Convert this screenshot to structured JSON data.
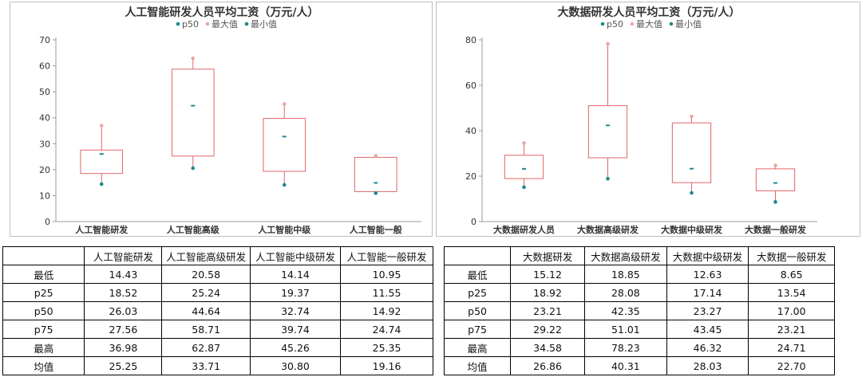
{
  "chart_data": [
    {
      "type": "box",
      "title": "人工智能研发人员平均工资（万元/人）",
      "legend": [
        {
          "name": "p50",
          "color": "#1a8a8a"
        },
        {
          "name": "最大值",
          "color": "#e7a8a8"
        },
        {
          "name": "最小值",
          "color": "#1a8a8a"
        }
      ],
      "categories": [
        "人工智能研发",
        "人工智能高级",
        "人工智能中级",
        "人工智能一般"
      ],
      "ylim": [
        0,
        70
      ],
      "yticks": [
        0,
        10,
        20,
        30,
        40,
        50,
        60,
        70
      ],
      "min": [
        14.43,
        20.58,
        14.14,
        10.95
      ],
      "p25": [
        18.52,
        25.24,
        19.37,
        11.55
      ],
      "p50": [
        26.03,
        44.64,
        32.74,
        14.92
      ],
      "p75": [
        27.56,
        58.71,
        39.74,
        24.74
      ],
      "max": [
        36.98,
        62.87,
        45.26,
        25.35
      ]
    },
    {
      "type": "box",
      "title": "大数据研发人员平均工资（万元/人）",
      "legend": [
        {
          "name": "p50",
          "color": "#1a8a8a"
        },
        {
          "name": "最大值",
          "color": "#e7a8a8"
        },
        {
          "name": "最小值",
          "color": "#1a8a8a"
        }
      ],
      "categories": [
        "大数据研发人员",
        "大数据高级研发",
        "大数据中级研发",
        "大数据一般研发"
      ],
      "ylim": [
        0,
        80
      ],
      "yticks": [
        0,
        20,
        40,
        60,
        80
      ],
      "min": [
        15.12,
        18.85,
        12.63,
        8.65
      ],
      "p25": [
        18.92,
        28.08,
        17.14,
        13.54
      ],
      "p50": [
        23.21,
        42.35,
        23.27,
        17.0
      ],
      "p75": [
        29.22,
        51.01,
        43.45,
        23.21
      ],
      "max": [
        34.58,
        78.23,
        46.32,
        24.71
      ]
    }
  ],
  "tables": [
    {
      "headers": [
        "",
        "人工智能研发",
        "人工智能高级研发",
        "人工智能中级研发",
        "人工智能一般研发"
      ],
      "rows": [
        [
          "最低",
          "14.43",
          "20.58",
          "14.14",
          "10.95"
        ],
        [
          "p25",
          "18.52",
          "25.24",
          "19.37",
          "11.55"
        ],
        [
          "p50",
          "26.03",
          "44.64",
          "32.74",
          "14.92"
        ],
        [
          "p75",
          "27.56",
          "58.71",
          "39.74",
          "24.74"
        ],
        [
          "最高",
          "36.98",
          "62.87",
          "45.26",
          "25.35"
        ],
        [
          "均值",
          "25.25",
          "33.71",
          "30.80",
          "19.16"
        ]
      ]
    },
    {
      "headers": [
        "",
        "大数据研发",
        "大数据高级研发",
        "大数据中级研发",
        "大数据一般研发"
      ],
      "rows": [
        [
          "最低",
          "15.12",
          "18.85",
          "12.63",
          "8.65"
        ],
        [
          "p25",
          "18.92",
          "28.08",
          "17.14",
          "13.54"
        ],
        [
          "p50",
          "23.21",
          "42.35",
          "23.27",
          "17.00"
        ],
        [
          "p75",
          "29.22",
          "51.01",
          "43.45",
          "23.21"
        ],
        [
          "最高",
          "34.58",
          "78.23",
          "46.32",
          "24.71"
        ],
        [
          "均值",
          "26.86",
          "40.31",
          "28.03",
          "22.70"
        ]
      ]
    }
  ]
}
